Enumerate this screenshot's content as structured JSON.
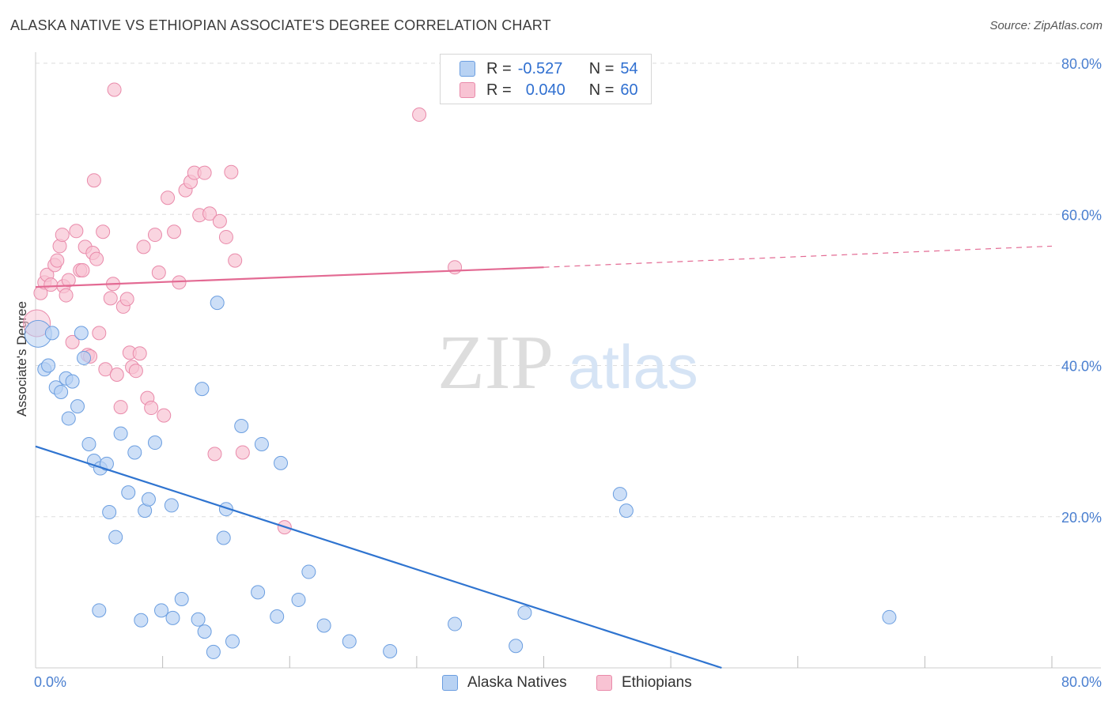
{
  "title": "ALASKA NATIVE VS ETHIOPIAN ASSOCIATE'S DEGREE CORRELATION CHART",
  "source": "Source: ZipAtlas.com",
  "watermark": {
    "zip": "ZIP",
    "atlas": "atlas"
  },
  "legend_top": [
    {
      "r_label": "R =",
      "r_value": "-0.527",
      "n_label": "N =",
      "n_value": "54"
    },
    {
      "r_label": "R =",
      "r_value": "0.040",
      "n_label": "N =",
      "n_value": "60"
    }
  ],
  "colors": {
    "blue_fill": "#b8d2f3",
    "blue_stroke": "#6b9ee0",
    "blue_line": "#2f74d0",
    "pink_fill": "#f8c3d3",
    "pink_stroke": "#e98aaa",
    "pink_line": "#e36a93",
    "grid": "#dddddd",
    "tick_text": "#4a7fd0"
  },
  "chart_data": {
    "type": "scatter",
    "title": "ALASKA NATIVE VS ETHIOPIAN ASSOCIATE'S DEGREE CORRELATION CHART",
    "xlabel": "",
    "ylabel": "Associate's Degree",
    "xlim": [
      0,
      80
    ],
    "ylim": [
      0,
      80
    ],
    "x_tick_labels": [
      "0.0%",
      "80.0%"
    ],
    "y_ticks": [
      20,
      40,
      60,
      80
    ],
    "y_tick_labels": [
      "20.0%",
      "40.0%",
      "60.0%",
      "80.0%"
    ],
    "grid": true,
    "legend_position": "bottom",
    "series": [
      {
        "name": "Alaska Natives",
        "color": "#b8d2f3",
        "r": -0.527,
        "n": 54,
        "trend": {
          "x": [
            0,
            54
          ],
          "y": [
            29.3,
            0
          ]
        },
        "points": [
          [
            0.2,
            44.2
          ],
          [
            0.7,
            39.5
          ],
          [
            1.0,
            40.0
          ],
          [
            1.3,
            44.3
          ],
          [
            1.6,
            37.1
          ],
          [
            2.0,
            36.5
          ],
          [
            2.4,
            38.3
          ],
          [
            2.6,
            33.0
          ],
          [
            2.9,
            37.9
          ],
          [
            3.3,
            34.6
          ],
          [
            3.6,
            44.3
          ],
          [
            3.8,
            41.0
          ],
          [
            4.2,
            29.6
          ],
          [
            4.6,
            27.4
          ],
          [
            5.1,
            26.4
          ],
          [
            5.6,
            27.0
          ],
          [
            5.8,
            20.6
          ],
          [
            6.3,
            17.3
          ],
          [
            6.7,
            31.0
          ],
          [
            7.3,
            23.2
          ],
          [
            7.8,
            28.5
          ],
          [
            8.6,
            20.8
          ],
          [
            8.9,
            22.3
          ],
          [
            9.4,
            29.8
          ],
          [
            10.7,
            21.5
          ],
          [
            13.1,
            36.9
          ],
          [
            14.3,
            48.3
          ],
          [
            14.8,
            17.2
          ],
          [
            15.0,
            21.0
          ],
          [
            16.2,
            32.0
          ],
          [
            17.5,
            10.0
          ],
          [
            17.8,
            29.6
          ],
          [
            19.0,
            6.8
          ],
          [
            19.3,
            27.1
          ],
          [
            20.7,
            9.0
          ],
          [
            21.5,
            12.7
          ],
          [
            22.7,
            5.6
          ],
          [
            24.7,
            3.5
          ],
          [
            27.9,
            2.2
          ],
          [
            33.0,
            5.8
          ],
          [
            37.8,
            2.9
          ],
          [
            38.5,
            7.3
          ],
          [
            46.0,
            23.0
          ],
          [
            46.5,
            20.8
          ],
          [
            67.2,
            6.7
          ],
          [
            5.0,
            7.6
          ],
          [
            8.3,
            6.3
          ],
          [
            9.9,
            7.6
          ],
          [
            10.8,
            6.6
          ],
          [
            11.5,
            9.1
          ],
          [
            12.8,
            6.4
          ],
          [
            13.3,
            4.8
          ],
          [
            14.0,
            2.1
          ],
          [
            15.5,
            3.5
          ]
        ]
      },
      {
        "name": "Ethiopians",
        "color": "#f8c3d3",
        "r": 0.04,
        "n": 60,
        "trend": {
          "x": [
            0,
            40
          ],
          "y": [
            50.4,
            53.0
          ]
        },
        "trend_dashed": {
          "x": [
            40,
            80
          ],
          "y": [
            53.0,
            55.8
          ]
        },
        "points": [
          [
            0.1,
            45.6
          ],
          [
            0.4,
            49.6
          ],
          [
            0.7,
            51.0
          ],
          [
            0.9,
            52.0
          ],
          [
            1.2,
            50.7
          ],
          [
            1.5,
            53.3
          ],
          [
            1.7,
            53.9
          ],
          [
            1.9,
            55.8
          ],
          [
            2.1,
            57.3
          ],
          [
            2.2,
            50.5
          ],
          [
            2.4,
            49.3
          ],
          [
            2.6,
            51.3
          ],
          [
            2.9,
            43.1
          ],
          [
            3.2,
            57.8
          ],
          [
            3.5,
            52.6
          ],
          [
            3.7,
            52.6
          ],
          [
            3.9,
            55.7
          ],
          [
            4.1,
            41.4
          ],
          [
            4.3,
            41.2
          ],
          [
            4.5,
            54.9
          ],
          [
            4.8,
            54.1
          ],
          [
            5.0,
            44.3
          ],
          [
            5.3,
            57.7
          ],
          [
            5.5,
            39.5
          ],
          [
            5.9,
            48.9
          ],
          [
            6.1,
            50.8
          ],
          [
            6.4,
            38.8
          ],
          [
            6.7,
            34.5
          ],
          [
            6.9,
            47.8
          ],
          [
            7.2,
            48.8
          ],
          [
            7.4,
            41.7
          ],
          [
            7.6,
            39.8
          ],
          [
            7.9,
            39.3
          ],
          [
            8.2,
            41.6
          ],
          [
            8.5,
            55.7
          ],
          [
            8.8,
            35.7
          ],
          [
            9.1,
            34.4
          ],
          [
            9.4,
            57.3
          ],
          [
            9.7,
            52.3
          ],
          [
            10.1,
            33.4
          ],
          [
            10.4,
            62.2
          ],
          [
            10.9,
            57.7
          ],
          [
            11.3,
            51.0
          ],
          [
            11.8,
            63.2
          ],
          [
            12.2,
            64.3
          ],
          [
            12.5,
            65.5
          ],
          [
            12.9,
            59.9
          ],
          [
            13.3,
            65.5
          ],
          [
            13.7,
            60.1
          ],
          [
            14.1,
            28.3
          ],
          [
            14.5,
            59.1
          ],
          [
            15.0,
            57.0
          ],
          [
            15.7,
            53.9
          ],
          [
            16.3,
            28.5
          ],
          [
            15.4,
            65.6
          ],
          [
            19.6,
            18.6
          ],
          [
            30.2,
            73.2
          ],
          [
            33.0,
            53.0
          ],
          [
            6.2,
            76.5
          ],
          [
            4.6,
            64.5
          ]
        ]
      }
    ]
  }
}
